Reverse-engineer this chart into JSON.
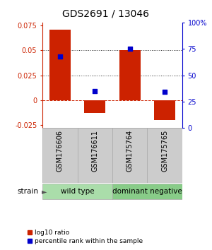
{
  "title": "GDS2691 / 13046",
  "samples": [
    "GSM176606",
    "GSM176611",
    "GSM175764",
    "GSM175765"
  ],
  "log10_ratio": [
    0.071,
    -0.013,
    0.05,
    -0.02
  ],
  "percentile_rank": [
    0.68,
    0.35,
    0.75,
    0.34
  ],
  "bar_color": "#cc2200",
  "dot_color": "#0000cc",
  "groups": [
    {
      "label": "wild type",
      "samples": [
        0,
        1
      ],
      "color": "#aaddaa"
    },
    {
      "label": "dominant negative",
      "samples": [
        2,
        3
      ],
      "color": "#88cc88"
    }
  ],
  "ylim_left": [
    -0.028,
    0.078
  ],
  "yticks_left": [
    -0.025,
    0,
    0.025,
    0.05,
    0.075
  ],
  "ylim_right": [
    0,
    1.0
  ],
  "yticks_right": [
    0,
    0.25,
    0.5,
    0.75,
    1.0
  ],
  "yticklabels_right": [
    "0",
    "25",
    "50",
    "75",
    "100%"
  ],
  "yticklabels_left": [
    "-0.025",
    "0",
    "0.025",
    "0.05",
    "0.075"
  ],
  "hlines": [
    0.025,
    0.05
  ],
  "hline_zero_color": "#cc2200",
  "hline_color": "#333333",
  "strain_label": "strain",
  "legend_bar_label": "log10 ratio",
  "legend_dot_label": "percentile rank within the sample",
  "bar_width": 0.6,
  "title_fontsize": 10,
  "tick_fontsize": 7,
  "sample_fontsize": 7,
  "group_fontsize": 7.5,
  "legend_fontsize": 6.5
}
